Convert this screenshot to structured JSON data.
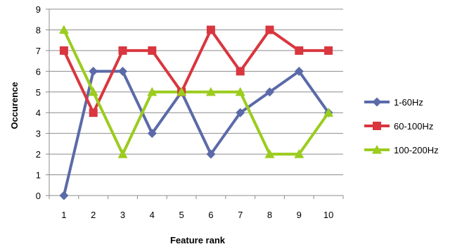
{
  "chart_data": {
    "type": "line",
    "title": "",
    "xlabel": "Feature rank",
    "ylabel": "Occurence",
    "x": [
      1,
      2,
      3,
      4,
      5,
      6,
      7,
      8,
      9,
      10
    ],
    "ylim": [
      0,
      9
    ],
    "yticks": [
      0,
      1,
      2,
      3,
      4,
      5,
      6,
      7,
      8,
      9
    ],
    "grid": "horizontal",
    "legend_position": "right",
    "series": [
      {
        "name": "1-60Hz",
        "color": "#5B6AA8",
        "marker": "diamond",
        "values": [
          0,
          6,
          6,
          3,
          5,
          2,
          4,
          5,
          6,
          4
        ]
      },
      {
        "name": "60-100Hz",
        "color": "#D9363F",
        "marker": "square",
        "values": [
          7,
          4,
          7,
          7,
          5,
          8,
          6,
          8,
          7,
          7
        ]
      },
      {
        "name": "100-200Hz",
        "color": "#9BCC1E",
        "marker": "triangle",
        "values": [
          8,
          5,
          2,
          5,
          5,
          5,
          5,
          2,
          2,
          4
        ]
      }
    ]
  }
}
